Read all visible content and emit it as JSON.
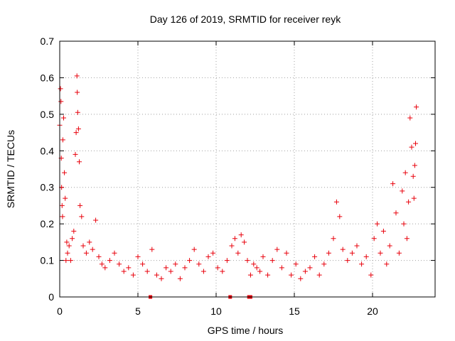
{
  "chart_data": {
    "type": "scatter",
    "title": "Day 126 of 2019, SRMTID for receiver reyk",
    "xlabel": "GPS time / hours",
    "ylabel": "SRMTID / TECUs",
    "xlim": [
      0,
      24
    ],
    "ylim": [
      0,
      0.7
    ],
    "xticks": [
      0,
      5,
      10,
      15,
      20
    ],
    "yticks": [
      0,
      0.1,
      0.2,
      0.3,
      0.4,
      0.5,
      0.6,
      0.7
    ],
    "x_tick_labels": [
      "0",
      "5",
      "10",
      "15",
      "20"
    ],
    "y_tick_labels": [
      "0",
      "0.1",
      "0.2",
      "0.3",
      "0.4",
      "0.5",
      "0.6",
      "0.7"
    ],
    "grid": true,
    "marker": "+",
    "color": "#e8000b",
    "series": [
      {
        "name": "SRMTID",
        "x": [
          0.0,
          0.05,
          0.08,
          0.1,
          0.12,
          0.15,
          0.18,
          0.2,
          0.25,
          0.3,
          0.35,
          0.4,
          0.45,
          0.5,
          0.6,
          0.7,
          0.8,
          0.9,
          1.0,
          1.05,
          1.1,
          1.12,
          1.15,
          1.2,
          1.25,
          1.3,
          1.4,
          1.5,
          1.7,
          1.9,
          2.1,
          2.3,
          2.5,
          2.7,
          2.9,
          3.2,
          3.5,
          3.8,
          4.1,
          4.4,
          4.7,
          5.0,
          5.3,
          5.6,
          5.9,
          6.2,
          6.5,
          6.8,
          7.1,
          7.4,
          7.7,
          8.0,
          8.3,
          8.6,
          8.9,
          9.2,
          9.5,
          9.8,
          10.1,
          10.4,
          10.7,
          11.0,
          11.2,
          11.4,
          11.6,
          11.8,
          12.0,
          12.2,
          12.4,
          12.6,
          12.8,
          13.0,
          13.3,
          13.6,
          13.9,
          14.2,
          14.5,
          14.8,
          15.1,
          15.4,
          15.7,
          16.0,
          16.3,
          16.6,
          16.9,
          17.2,
          17.5,
          17.7,
          17.9,
          18.1,
          18.4,
          18.7,
          19.0,
          19.3,
          19.6,
          19.9,
          20.1,
          20.3,
          20.5,
          20.7,
          20.9,
          21.1,
          21.3,
          21.5,
          21.7,
          21.9,
          22.0,
          22.1,
          22.2,
          22.3,
          22.4,
          22.5,
          22.6,
          22.65,
          22.7,
          22.75,
          22.8
        ],
        "y": [
          0.47,
          0.57,
          0.535,
          0.38,
          0.3,
          0.25,
          0.22,
          0.43,
          0.49,
          0.34,
          0.27,
          0.1,
          0.15,
          0.12,
          0.14,
          0.1,
          0.16,
          0.18,
          0.39,
          0.45,
          0.605,
          0.56,
          0.505,
          0.46,
          0.37,
          0.25,
          0.22,
          0.14,
          0.12,
          0.15,
          0.13,
          0.21,
          0.11,
          0.09,
          0.08,
          0.1,
          0.12,
          0.09,
          0.07,
          0.08,
          0.06,
          0.11,
          0.09,
          0.07,
          0.13,
          0.06,
          0.05,
          0.08,
          0.07,
          0.09,
          0.05,
          0.08,
          0.1,
          0.13,
          0.09,
          0.07,
          0.11,
          0.12,
          0.08,
          0.07,
          0.1,
          0.14,
          0.16,
          0.12,
          0.17,
          0.15,
          0.1,
          0.06,
          0.09,
          0.08,
          0.07,
          0.11,
          0.06,
          0.1,
          0.13,
          0.08,
          0.12,
          0.06,
          0.09,
          0.05,
          0.07,
          0.08,
          0.11,
          0.06,
          0.09,
          0.12,
          0.16,
          0.26,
          0.22,
          0.13,
          0.1,
          0.12,
          0.14,
          0.09,
          0.11,
          0.06,
          0.16,
          0.2,
          0.12,
          0.18,
          0.09,
          0.14,
          0.31,
          0.23,
          0.12,
          0.29,
          0.2,
          0.34,
          0.16,
          0.26,
          0.49,
          0.41,
          0.33,
          0.27,
          0.36,
          0.42,
          0.52
        ]
      }
    ],
    "markers_on_axis": [
      5.8,
      10.9,
      12.1,
      12.2
    ]
  }
}
